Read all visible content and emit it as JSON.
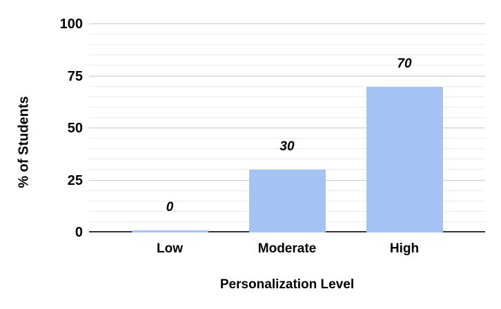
{
  "chart_data": {
    "type": "bar",
    "title": "",
    "categories": [
      "Low",
      "Moderate",
      "High"
    ],
    "values": [
      0,
      30,
      70
    ],
    "data_labels": [
      "0",
      "30",
      "70"
    ],
    "xlabel": "Personalization Level",
    "ylabel": "% of Students",
    "ylim": [
      0,
      100
    ],
    "yticks": [
      0,
      25,
      50,
      75,
      100
    ],
    "minor_grid_step": 5,
    "grid": true,
    "legend": "none",
    "colors": {
      "bar": "#a4c2f4",
      "axis_line": "#333333",
      "grid_major": "#c9c9c9",
      "grid_minor": "#ebebeb",
      "text": "#000000"
    }
  }
}
